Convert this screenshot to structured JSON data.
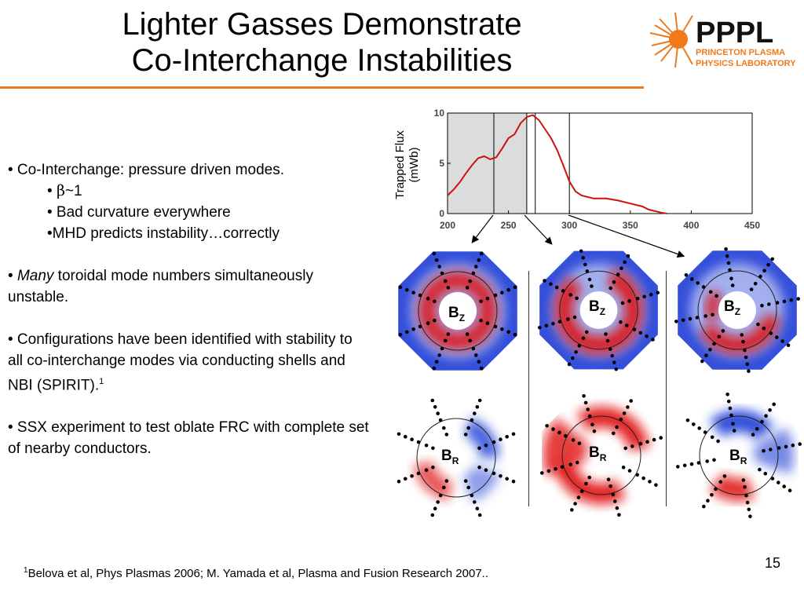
{
  "slide": {
    "title_line1": "Lighter Gasses Demonstrate",
    "title_line2": "Co-Interchange Instabilities",
    "page_number": "15"
  },
  "logo": {
    "name": "PPPL",
    "subtitle1": "PRINCETON PLASMA",
    "subtitle2": "PHYSICS LABORATORY",
    "icon": "sunburst-icon",
    "accent_color": "#f07a1a"
  },
  "bullets": {
    "b1": "• Co-Interchange: pressure driven modes.",
    "b1_sub1_prefix": "• ",
    "b1_sub1_symbol": "β",
    "b1_sub1_rest": "~1",
    "b1_sub2": "• Bad curvature everywhere",
    "b1_sub3": "•MHD predicts instability…correctly",
    "b2_prefix": "• ",
    "b2_em": "Many",
    "b2_rest": " toroidal mode numbers simultaneously unstable.",
    "b3": "• Configurations have been identified with stability to all co-interchange modes via conducting shells and NBI (SPIRIT).",
    "b3_sup": "1",
    "b4": "• SSX experiment to test oblate FRC with complete set of nearby conductors."
  },
  "chart_data": {
    "type": "line",
    "ylabel_line1": "Trapped Flux",
    "ylabel_line2": "(mWb)",
    "xlim": [
      200,
      450
    ],
    "ylim": [
      0,
      10
    ],
    "x_ticks": [
      "200",
      "250",
      "300",
      "350",
      "400",
      "450"
    ],
    "y_ticks": [
      "0",
      "5",
      "10"
    ],
    "x_values": [
      200,
      205,
      210,
      215,
      220,
      225,
      230,
      235,
      240,
      245,
      250,
      255,
      260,
      265,
      270,
      275,
      280,
      285,
      290,
      295,
      300,
      305,
      310,
      320,
      330,
      340,
      350,
      360,
      365,
      375,
      380
    ],
    "series": [
      {
        "values": [
          1.8,
          2.4,
          3.1,
          4.0,
          4.8,
          5.5,
          5.7,
          5.4,
          5.6,
          6.5,
          7.5,
          7.9,
          9.0,
          9.6,
          9.8,
          9.3,
          8.4,
          7.5,
          6.3,
          4.8,
          3.2,
          2.2,
          1.8,
          1.5,
          1.5,
          1.3,
          1.0,
          0.7,
          0.4,
          0.1,
          0.0
        ]
      }
    ],
    "shaded_region": [
      200,
      265
    ],
    "marker_lines": [
      238,
      265,
      272,
      300
    ],
    "grid": false,
    "line_color": "#cc1111"
  },
  "panels": {
    "bz_label": "B",
    "bz_sub": "Z",
    "br_label": "B",
    "br_sub": "R",
    "positive_color": "#e01010",
    "negative_color": "#1e3cd6"
  },
  "footer": {
    "sup": "1",
    "text": "Belova et al, Phys Plasmas 2006; M. Yamada et al, Plasma and Fusion Research 2007.."
  }
}
